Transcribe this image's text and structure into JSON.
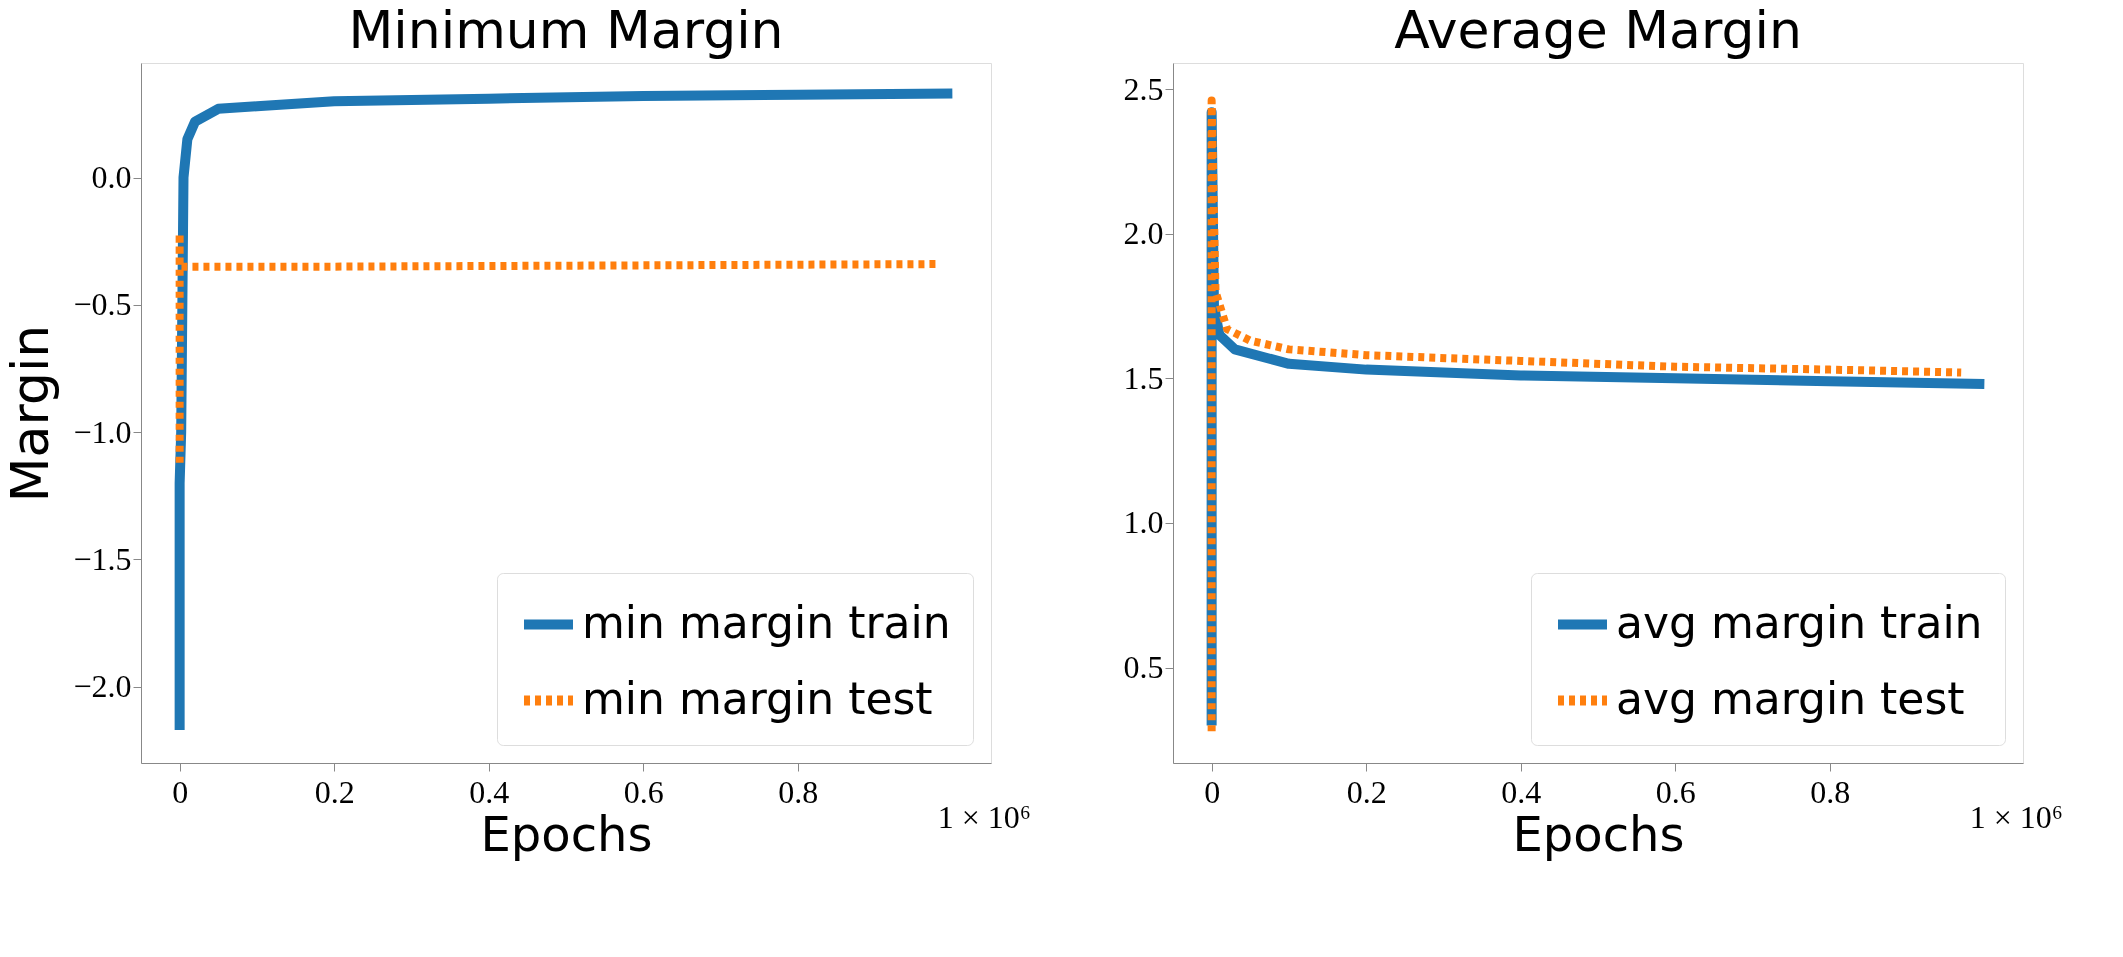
{
  "chart_data": [
    {
      "type": "line",
      "title": "Minimum Margin",
      "xlabel": "Epochs",
      "ylabel": "Margin",
      "xlim": [
        -0.05,
        1.05
      ],
      "xticks": [
        0,
        0.2,
        0.4,
        0.6,
        0.8
      ],
      "ylim": [
        -2.3,
        0.45
      ],
      "yticks": [
        {
          "value": -2.0,
          "label": "−2.0"
        },
        {
          "value": -1.5,
          "label": "−1.5"
        },
        {
          "value": -1.0,
          "label": "−1.0"
        },
        {
          "value": -0.5,
          "label": "−0.5"
        },
        {
          "value": 0.0,
          "label": "0.0"
        }
      ],
      "legend": "bottom right",
      "grid": false,
      "annotations": [
        "1 × 10⁶"
      ],
      "series": [
        {
          "name": "min margin train",
          "color": "#1f77b4",
          "line_style": "solid",
          "x": [
            0,
            0,
            0.002,
            0.005,
            0.01,
            0.02,
            0.05,
            0.1,
            0.2,
            0.4,
            0.6,
            0.8,
            1.0
          ],
          "values": [
            -2.17,
            -1.2,
            -1.0,
            0.0,
            0.15,
            0.22,
            0.27,
            0.28,
            0.3,
            0.31,
            0.32,
            0.325,
            0.33
          ]
        },
        {
          "name": "min margin test",
          "color": "#ff7f0e",
          "line_style": "dotted",
          "x": [
            0,
            0,
            0,
            0.005,
            0.2,
            0.6,
            0.98
          ],
          "values": [
            -1.12,
            -0.22,
            -0.35,
            -0.35,
            -0.35,
            -0.345,
            -0.34
          ]
        }
      ]
    },
    {
      "type": "line",
      "title": "Average Margin",
      "xlabel": "Epochs",
      "xlim": [
        -0.05,
        1.05
      ],
      "xticks": [
        0,
        0.2,
        0.4,
        0.6,
        0.8
      ],
      "ylim": [
        0.17,
        2.59
      ],
      "yticks": [
        0.5,
        {
          "value": 1.0,
          "label": "1.0"
        },
        1.5,
        {
          "value": 2.0,
          "label": "2.0"
        },
        2.5
      ],
      "legend": "bottom right",
      "grid": false,
      "annotations": [
        "1 × 10⁶"
      ],
      "series": [
        {
          "name": "avg margin train",
          "color": "#1f77b4",
          "line_style": "solid",
          "x": [
            0,
            0,
            0.003,
            0.01,
            0.03,
            0.1,
            0.2,
            0.4,
            0.6,
            0.8,
            1.0
          ],
          "values": [
            0.3,
            2.42,
            1.75,
            1.65,
            1.6,
            1.55,
            1.53,
            1.51,
            1.5,
            1.49,
            1.48
          ]
        },
        {
          "name": "avg margin test",
          "color": "#ff7f0e",
          "line_style": "dotted",
          "x": [
            0,
            0,
            0.005,
            0.02,
            0.05,
            0.1,
            0.2,
            0.4,
            0.6,
            0.8,
            0.97
          ],
          "values": [
            0.28,
            2.46,
            1.8,
            1.67,
            1.63,
            1.6,
            1.58,
            1.56,
            1.54,
            1.53,
            1.52
          ]
        }
      ]
    }
  ]
}
